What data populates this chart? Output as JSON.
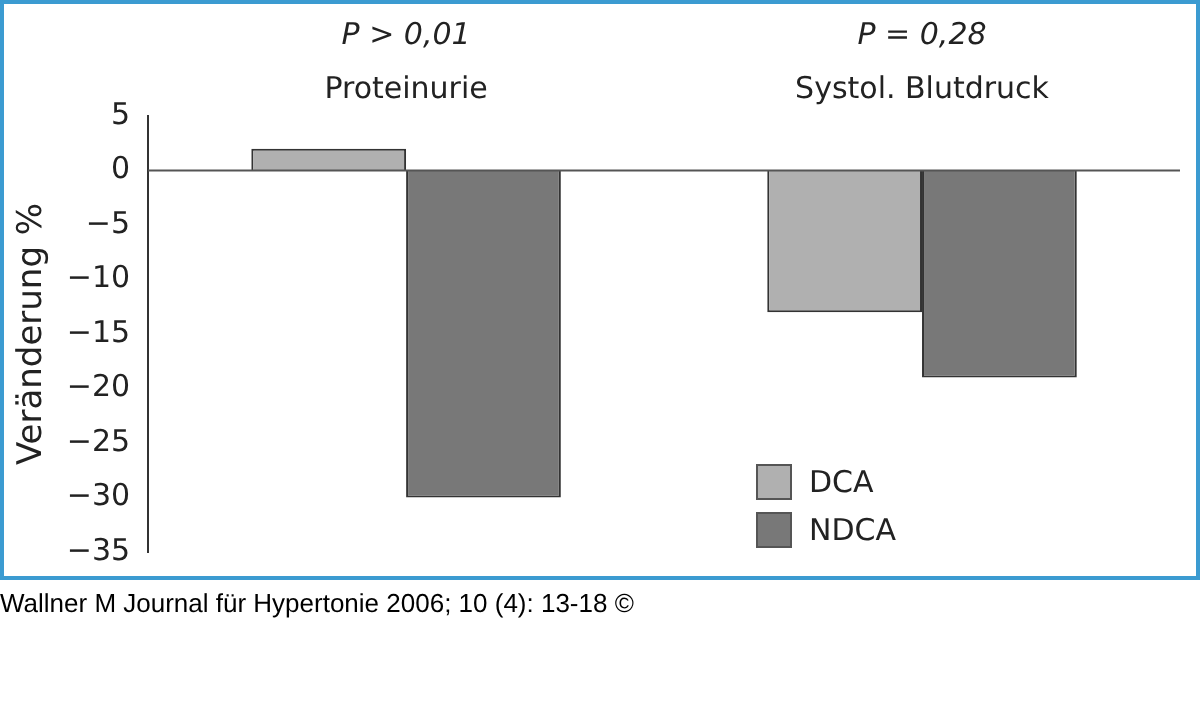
{
  "chart_data": {
    "type": "bar",
    "categories": [
      "Proteinurie",
      "Systol. Blutdruck"
    ],
    "series": [
      {
        "name": "DCA",
        "color": "#b0b0b0",
        "values": [
          2,
          -13
        ]
      },
      {
        "name": "NDCA",
        "color": "#787878",
        "values": [
          -30,
          -19
        ]
      }
    ],
    "ylabel": "Veränderung %",
    "ylim": [
      -35,
      5
    ],
    "yticks": [
      5,
      0,
      -5,
      -10,
      -15,
      -20,
      -25,
      -30,
      -35
    ],
    "grid": false,
    "legend": "bottom right",
    "annotations": [
      "P > 0,01",
      "P = 0,28",
      "Wallner M Journal für Hypertonie 2006; 10 (4): 13-18 ©"
    ]
  }
}
